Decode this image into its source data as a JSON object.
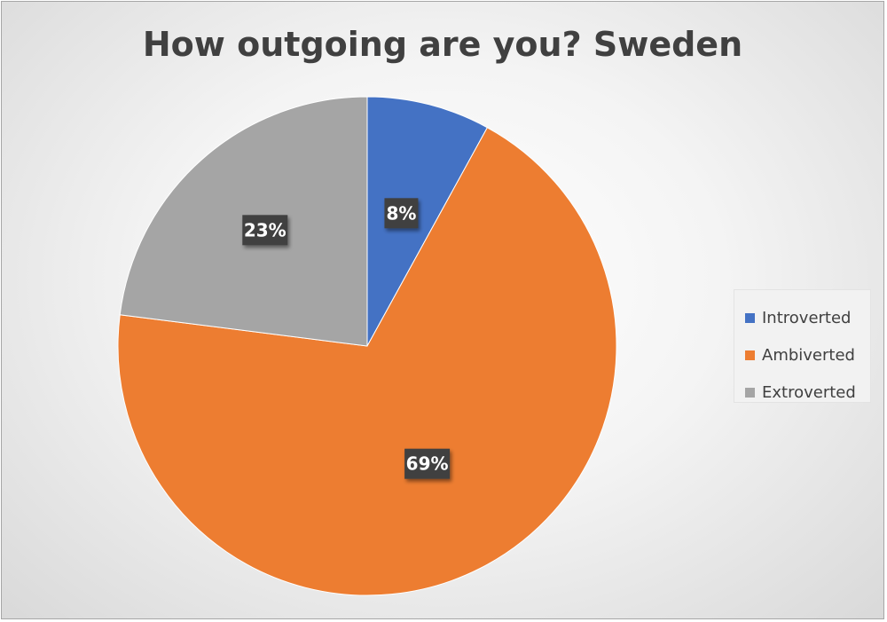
{
  "chart_data": {
    "type": "pie",
    "title": "How outgoing are you? Sweden",
    "categories": [
      "Introverted",
      "Ambiverted",
      "Extroverted"
    ],
    "values": [
      8,
      69,
      23
    ],
    "value_labels": [
      "8%",
      "69%",
      "23%"
    ],
    "colors": [
      "#4472c4",
      "#ed7d31",
      "#a5a5a5"
    ],
    "legend": {
      "placement": "right",
      "entries": [
        "Introverted",
        "Ambiverted",
        "Extroverted"
      ]
    },
    "start_angle": "12 o'clock",
    "direction": "clockwise"
  }
}
